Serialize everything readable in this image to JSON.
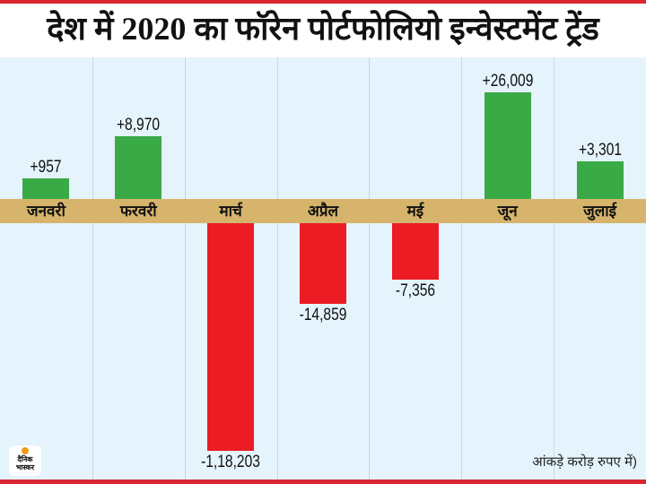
{
  "title": "देश में 2020 का फॉरेन पोर्टफोलियो इन्वेस्टमेंट ट्रेंड",
  "note": "आंकड़े करोड़ रुपए में)",
  "logo_text": "दैनिक भास्कर",
  "colors": {
    "positive": "#3aaa47",
    "negative": "#ec1c24",
    "band": "#d6b46c",
    "background": "#e4f3fc"
  },
  "chart_data": {
    "type": "bar",
    "title": "देश में 2020 का फॉरेन पोर्टफोलियो इन्वेस्टमेंट ट्रेंड",
    "categories": [
      "जनवरी",
      "फरवरी",
      "मार्च",
      "अप्रैल",
      "मई",
      "जून",
      "जुलाई"
    ],
    "values": [
      957,
      8970,
      -118203,
      -14859,
      -7356,
      26009,
      3301
    ],
    "labels": [
      "+957",
      "+8,970",
      "-1,18,203",
      "-14,859",
      "-7,356",
      "+26,009",
      "+3,301"
    ],
    "unit": "करोड़ रुपए",
    "xlabel": "",
    "ylabel": ""
  }
}
